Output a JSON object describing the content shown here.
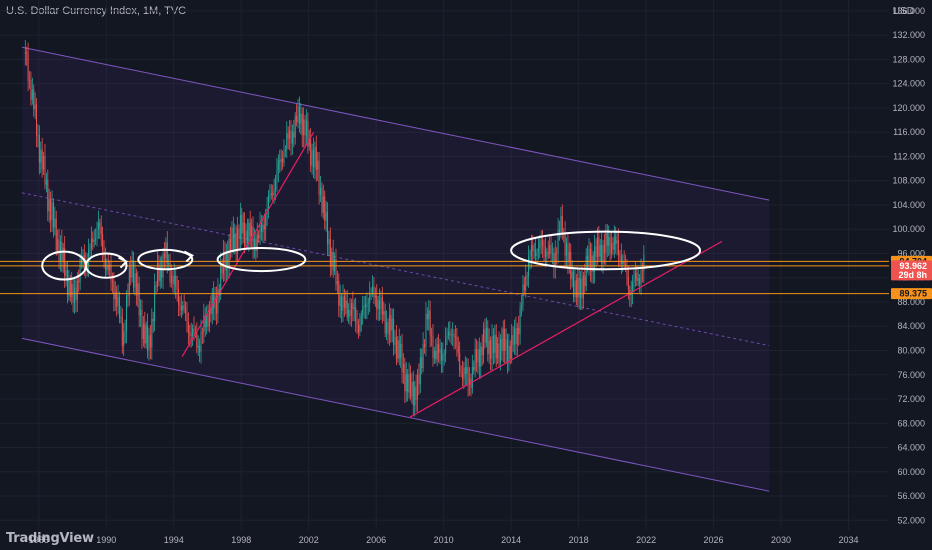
{
  "header": {
    "symbol_line": "U.S. Dollar Currency Index, 1M, TVC",
    "currency": "USD"
  },
  "watermark": "TradingView",
  "price_tags": [
    {
      "label": "94.704",
      "value": 94.704,
      "bg": "#f7931a",
      "fg": "#131722"
    },
    {
      "label": "93.962",
      "value": 93.962,
      "bg": "#ef5350",
      "fg": "#ffffff",
      "sub": "29d 8h"
    },
    {
      "label": "89.375",
      "value": 89.375,
      "bg": "#f7931a",
      "fg": "#131722"
    }
  ],
  "chart_data": {
    "type": "candlestick",
    "title": "U.S. Dollar Currency Index, 1M, TVC",
    "x_ticks": [
      "1986",
      "1990",
      "1994",
      "1998",
      "2002",
      "2006",
      "2010",
      "2014",
      "2018",
      "2022",
      "2026",
      "2030",
      "2034"
    ],
    "y_ticks": [
      "52.000",
      "56.000",
      "60.000",
      "64.000",
      "68.000",
      "72.000",
      "76.000",
      "80.000",
      "84.000",
      "88.000",
      "92.000",
      "96.000",
      "100.000",
      "104.000",
      "108.000",
      "112.000",
      "116.000",
      "120.000",
      "124.000",
      "128.000",
      "132.000",
      "136.000"
    ],
    "xlim": [
      1983.7,
      2036.4
    ],
    "ylim": [
      50.4,
      137.8
    ],
    "colors": {
      "up": "#26a69a",
      "down": "#ef5350",
      "channel": "#7e57c2",
      "channel_fill": "rgba(103,58,183,0.10)",
      "trendline": "#e91e63",
      "hline": "#f7931a",
      "marker": "#ffffff"
    },
    "series_points": [
      [
        1985.2,
        129.0
      ],
      [
        1985.6,
        122.0
      ],
      [
        1986.0,
        114.0
      ],
      [
        1986.5,
        106.0
      ],
      [
        1987.0,
        99.0
      ],
      [
        1987.5,
        94.0
      ],
      [
        1988.0,
        88.0
      ],
      [
        1988.5,
        94.0
      ],
      [
        1989.0,
        96.0
      ],
      [
        1989.5,
        101.0
      ],
      [
        1990.0,
        94.0
      ],
      [
        1990.5,
        90.0
      ],
      [
        1991.0,
        82.0
      ],
      [
        1991.5,
        95.0
      ],
      [
        1992.0,
        86.0
      ],
      [
        1992.5,
        80.0
      ],
      [
        1993.0,
        92.0
      ],
      [
        1993.5,
        96.0
      ],
      [
        1994.0,
        91.0
      ],
      [
        1994.5,
        87.0
      ],
      [
        1995.0,
        83.0
      ],
      [
        1995.5,
        81.0
      ],
      [
        1996.0,
        86.0
      ],
      [
        1996.5,
        88.0
      ],
      [
        1997.0,
        95.0
      ],
      [
        1997.5,
        98.0
      ],
      [
        1998.0,
        100.0
      ],
      [
        1998.5,
        99.0
      ],
      [
        1999.0,
        98.0
      ],
      [
        1999.5,
        103.0
      ],
      [
        2000.0,
        108.0
      ],
      [
        2000.5,
        113.0
      ],
      [
        2001.0,
        116.0
      ],
      [
        2001.5,
        119.0
      ],
      [
        2002.0,
        114.0
      ],
      [
        2002.5,
        110.0
      ],
      [
        2003.0,
        101.0
      ],
      [
        2003.5,
        93.0
      ],
      [
        2004.0,
        87.0
      ],
      [
        2004.5,
        87.0
      ],
      [
        2005.0,
        84.0
      ],
      [
        2005.5,
        89.0
      ],
      [
        2006.0,
        89.0
      ],
      [
        2006.5,
        85.0
      ],
      [
        2007.0,
        83.0
      ],
      [
        2007.5,
        78.0
      ],
      [
        2008.0,
        73.0
      ],
      [
        2008.5,
        74.0
      ],
      [
        2009.0,
        86.0
      ],
      [
        2009.5,
        79.0
      ],
      [
        2010.0,
        80.0
      ],
      [
        2010.5,
        84.0
      ],
      [
        2011.0,
        77.0
      ],
      [
        2011.5,
        75.0
      ],
      [
        2012.0,
        79.0
      ],
      [
        2012.5,
        82.0
      ],
      [
        2013.0,
        80.0
      ],
      [
        2013.5,
        81.0
      ],
      [
        2014.0,
        80.0
      ],
      [
        2014.5,
        85.0
      ],
      [
        2015.0,
        95.0
      ],
      [
        2015.5,
        97.0
      ],
      [
        2016.0,
        97.0
      ],
      [
        2016.5,
        95.0
      ],
      [
        2017.0,
        101.0
      ],
      [
        2017.5,
        93.0
      ],
      [
        2018.0,
        89.0
      ],
      [
        2018.5,
        94.0
      ],
      [
        2019.0,
        96.0
      ],
      [
        2019.5,
        97.0
      ],
      [
        2020.0,
        98.0
      ],
      [
        2020.5,
        96.0
      ],
      [
        2021.0,
        90.0
      ],
      [
        2021.5,
        92.0
      ],
      [
        2021.9,
        94.0
      ]
    ],
    "channel": {
      "upper": [
        [
          1985.0,
          130.0
        ],
        [
          2029.3,
          104.8
        ]
      ],
      "lower": [
        [
          1985.0,
          82.0
        ],
        [
          2029.3,
          56.8
        ]
      ],
      "mid": [
        [
          1985.0,
          106.0
        ],
        [
          2029.3,
          80.8
        ]
      ]
    },
    "trendlines": [
      [
        [
          1994.5,
          79.0
        ],
        [
          2002.3,
          116.0
        ]
      ],
      [
        [
          2008.0,
          69.0
        ],
        [
          2026.5,
          98.0
        ]
      ]
    ],
    "hlines": [
      94.704,
      93.962,
      89.375
    ],
    "markers": [
      {
        "x": 1987.5,
        "y": 94.0,
        "rx": 1.3,
        "ry": 2.3,
        "arrow": false
      },
      {
        "x": 1990.0,
        "y": 94.0,
        "rx": 1.2,
        "ry": 2.0,
        "arrow": true
      },
      {
        "x": 1993.5,
        "y": 95.0,
        "rx": 1.6,
        "ry": 1.6,
        "arrow": true
      },
      {
        "x": 1999.2,
        "y": 95.0,
        "rx": 2.6,
        "ry": 1.9,
        "arrow": false
      },
      {
        "x": 2019.6,
        "y": 96.5,
        "rx": 5.6,
        "ry": 3.1,
        "arrow": false
      }
    ]
  }
}
